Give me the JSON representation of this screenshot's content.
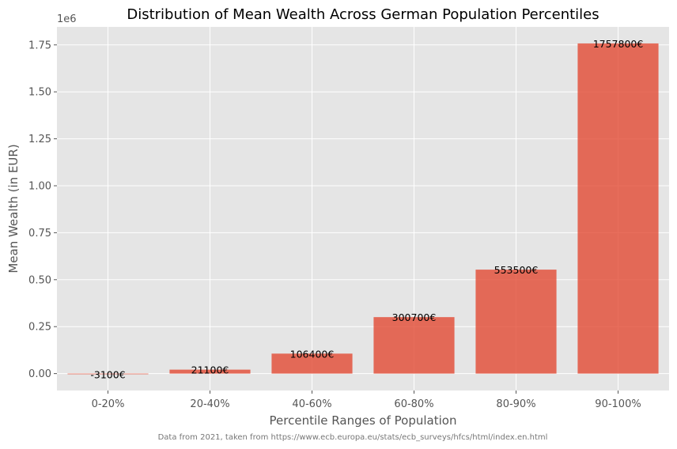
{
  "chart_data": {
    "type": "bar",
    "title": "Distribution of Mean Wealth Across German Population Percentiles",
    "xlabel": "Percentile Ranges of Population",
    "ylabel": "Mean Wealth (in EUR)",
    "y_offset_label": "1e6",
    "footnote": "Data from 2021, taken from https://www.ecb.europa.eu/stats/ecb_surveys/hfcs/html/index.en.html",
    "categories": [
      "0-20%",
      "20-40%",
      "40-60%",
      "60-80%",
      "80-90%",
      "90-100%"
    ],
    "values": [
      -3100,
      21100,
      106400,
      300700,
      553500,
      1757800
    ],
    "value_labels": [
      "-3100€",
      "21100€",
      "106400€",
      "300700€",
      "553500€",
      "1757800€"
    ],
    "ylim": [
      -90000,
      1845900
    ],
    "yticks": [
      0,
      250000,
      500000,
      750000,
      1000000,
      1250000,
      1500000,
      1750000
    ],
    "ytick_labels": [
      "0.00",
      "0.25",
      "0.50",
      "0.75",
      "1.00",
      "1.25",
      "1.50",
      "1.75"
    ],
    "grid": true,
    "colors": {
      "bar": "#E24A33",
      "plot_background": "#E5E5E5",
      "grid": "#FFFFFF",
      "tick_text": "#555555",
      "label_text": "#555555",
      "title_text": "#000000",
      "value_label_text": "#000000",
      "footnote_text": "#777777"
    }
  }
}
